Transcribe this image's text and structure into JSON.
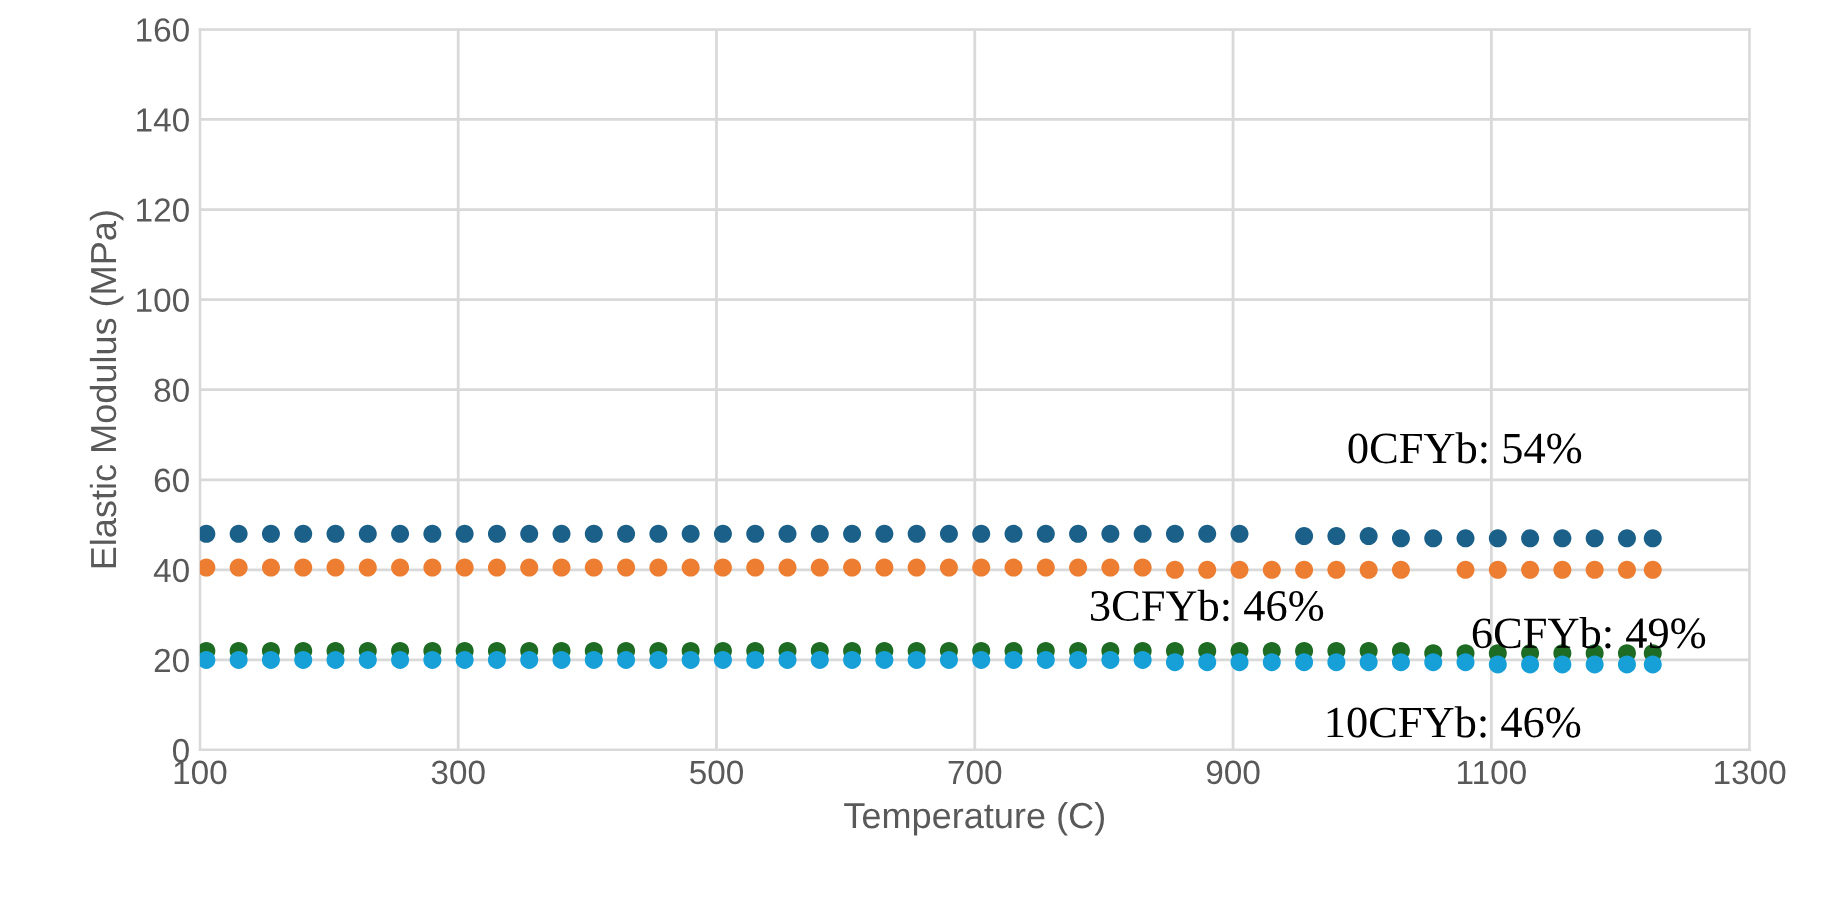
{
  "chart_data": {
    "type": "scatter",
    "xlabel": "Temperature (C)",
    "ylabel": "Elastic Modulus (MPa)",
    "x": [
      105,
      130,
      155,
      180,
      205,
      230,
      255,
      280,
      305,
      330,
      355,
      380,
      405,
      430,
      455,
      480,
      505,
      530,
      555,
      580,
      605,
      630,
      655,
      680,
      705,
      730,
      755,
      780,
      805,
      830,
      855,
      880,
      905,
      930,
      955,
      980,
      1005,
      1030,
      1055,
      1080,
      1105,
      1130,
      1155,
      1180,
      1205,
      1225
    ],
    "series": [
      {
        "color": "#1b6088",
        "values": [
          48,
          48,
          48,
          48,
          48,
          48,
          48,
          48,
          48,
          48,
          48,
          48,
          48,
          48,
          48,
          48,
          48,
          48,
          48,
          48,
          48,
          48,
          48,
          48,
          48,
          48,
          48,
          48,
          48,
          48,
          48,
          48,
          48,
          null,
          47.5,
          47.5,
          47.5,
          47,
          47,
          47,
          47,
          47,
          47,
          47,
          47,
          47
        ]
      },
      {
        "color": "#ed7d31",
        "values": [
          40.5,
          40.5,
          40.5,
          40.5,
          40.5,
          40.5,
          40.5,
          40.5,
          40.5,
          40.5,
          40.5,
          40.5,
          40.5,
          40.5,
          40.5,
          40.5,
          40.5,
          40.5,
          40.5,
          40.5,
          40.5,
          40.5,
          40.5,
          40.5,
          40.5,
          40.5,
          40.5,
          40.5,
          40.5,
          40.5,
          40,
          40,
          40,
          40,
          40,
          40,
          40,
          40,
          null,
          40,
          40,
          40,
          40,
          40,
          40,
          40
        ]
      },
      {
        "color": "#1e6b24",
        "values": [
          22,
          22,
          22,
          22,
          22,
          22,
          22,
          22,
          22,
          22,
          22,
          22,
          22,
          22,
          22,
          22,
          22,
          22,
          22,
          22,
          22,
          22,
          22,
          22,
          22,
          22,
          22,
          22,
          22,
          22,
          22,
          22,
          22,
          22,
          22,
          22,
          22,
          22,
          21.5,
          21.5,
          21.5,
          21.5,
          21.5,
          21.5,
          21.5,
          21.5
        ]
      },
      {
        "color": "#17a0d8",
        "values": [
          20,
          20,
          20,
          20,
          20,
          20,
          20,
          20,
          20,
          20,
          20,
          20,
          20,
          20,
          20,
          20,
          20,
          20,
          20,
          20,
          20,
          20,
          20,
          20,
          20,
          20,
          20,
          20,
          20,
          20,
          19.5,
          19.5,
          19.5,
          19.5,
          19.5,
          19.5,
          19.5,
          19.5,
          19.5,
          19.5,
          19,
          19,
          19,
          19,
          19,
          19
        ]
      }
    ],
    "annotations": [
      "0CFYb: 54%",
      "3CFYb: 46%",
      "6CFYb: 49%",
      "10CFYb: 46%"
    ],
    "xlim": [
      100,
      1300
    ],
    "xticks": [
      100,
      300,
      500,
      700,
      900,
      1100,
      1300
    ],
    "ylim": [
      0,
      160
    ],
    "yticks": [
      0,
      20,
      40,
      60,
      80,
      100,
      120,
      140,
      160
    ],
    "grid": true,
    "legend": false,
    "marker": "circle"
  }
}
